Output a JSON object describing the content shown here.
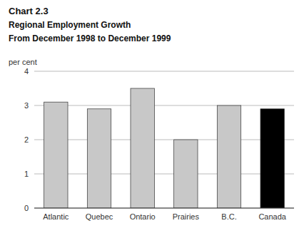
{
  "chart_data": {
    "type": "bar",
    "title": "Chart 2.3",
    "subtitle": [
      "Regional Employment Growth",
      "From December 1998 to December 1999"
    ],
    "y_label": "per cent",
    "categories": [
      "Atlantic",
      "Quebec",
      "Ontario",
      "Prairies",
      "B.C.",
      "Canada"
    ],
    "values": [
      3.1,
      2.9,
      3.5,
      2.0,
      3.0,
      2.9
    ],
    "colors": [
      "#c8c8c8",
      "#c8c8c8",
      "#c8c8c8",
      "#c8c8c8",
      "#c8c8c8",
      "#000000"
    ],
    "ylim": [
      0,
      4
    ],
    "yticks": [
      0,
      1,
      2,
      3,
      4
    ],
    "grid": true
  }
}
